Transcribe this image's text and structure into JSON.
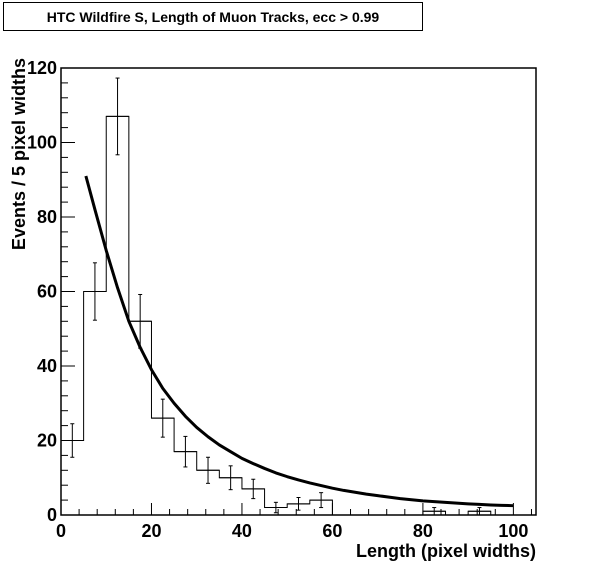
{
  "chart_data": {
    "type": "bar",
    "title": "HTC Wildfire S, Length of Muon Tracks, ecc > 0.99",
    "xlabel": "Length (pixel widths)",
    "ylabel": "Events / 5 pixel widths",
    "xlim": [
      0,
      105
    ],
    "ylim": [
      0,
      120
    ],
    "x_ticks": [
      0,
      20,
      40,
      60,
      80,
      100
    ],
    "y_ticks": [
      0,
      20,
      40,
      60,
      80,
      100,
      120
    ],
    "x_tick_labels": [
      "0",
      "20",
      "40",
      "60",
      "80",
      "100"
    ],
    "y_tick_labels": [
      "0",
      "20",
      "40",
      "60",
      "80",
      "100",
      "120"
    ],
    "bin_width": 5,
    "bin_edges": [
      0,
      5,
      10,
      15,
      20,
      25,
      30,
      35,
      40,
      45,
      50,
      55,
      60,
      65,
      70,
      75,
      80,
      85,
      90,
      95,
      100
    ],
    "values": [
      20,
      60,
      107,
      52,
      26,
      17,
      12,
      10,
      7,
      2,
      3,
      4,
      0,
      0,
      0,
      0,
      1,
      0,
      1,
      0
    ],
    "errors": [
      4.5,
      7.7,
      10.3,
      7.2,
      5.1,
      4.1,
      3.5,
      3.2,
      2.6,
      1.4,
      1.7,
      2.0,
      0,
      0,
      0,
      0,
      1.0,
      0,
      1.0,
      0
    ],
    "fit_curve": {
      "x": [
        5.5,
        7.5,
        10,
        12.5,
        15,
        17.5,
        20,
        22.5,
        25,
        27.5,
        30,
        32.5,
        35,
        37.5,
        40,
        42.5,
        45,
        47.5,
        50,
        52.5,
        55,
        57.5,
        60,
        62.5,
        65,
        67.5,
        70,
        72.5,
        75,
        77.5,
        80,
        82.5,
        85,
        87.5,
        90,
        92.5,
        95,
        97.5,
        100
      ],
      "y": [
        91,
        82,
        71,
        61,
        52,
        45,
        39,
        34,
        30,
        26.5,
        23.5,
        21,
        18.8,
        17,
        15.2,
        13.8,
        12.5,
        11.3,
        10.3,
        9.4,
        8.6,
        7.9,
        7.2,
        6.6,
        6.1,
        5.6,
        5.2,
        4.8,
        4.4,
        4.1,
        3.8,
        3.6,
        3.4,
        3.2,
        3.0,
        2.85,
        2.7,
        2.6,
        2.5
      ]
    }
  }
}
